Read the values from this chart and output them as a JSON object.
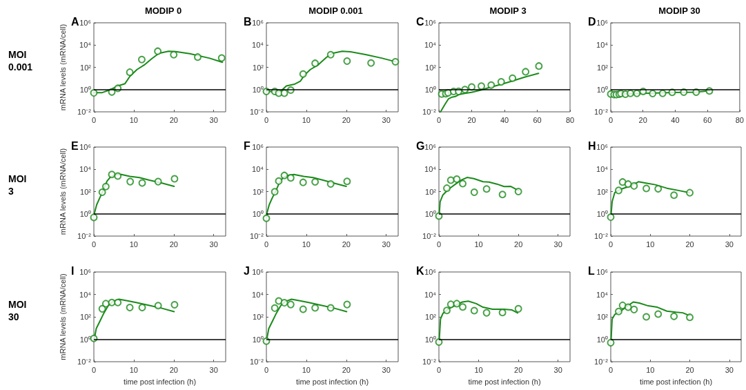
{
  "chart_data": [
    {
      "type": "scatter",
      "title": "MODIP 0",
      "ylabel": "mRNA levels (mRNA/cell)",
      "annotations": [
        "A",
        "MOI 0.001"
      ],
      "log": "y",
      "xlim": [
        0,
        33
      ],
      "xticks": [
        0,
        10,
        20,
        30
      ],
      "ylim": [
        0.01,
        1000000
      ],
      "yticks": [
        {
          "value": 0.01,
          "label": "10⁻²"
        },
        {
          "value": 1,
          "label": "10⁰"
        },
        {
          "value": 100,
          "label": "10²"
        },
        {
          "value": 10000,
          "label": "10⁴"
        },
        {
          "value": 1000000,
          "label": "10⁶"
        }
      ],
      "ref_lines": [
        {
          "axis": "y",
          "value": 1,
          "color": "#000000"
        }
      ],
      "series": [
        {
          "type": "scatter",
          "marker": "circle",
          "color": "#1a8a1a",
          "x": [
            0,
            4.5,
            6,
            9,
            12,
            16,
            20,
            26,
            32
          ],
          "values": [
            0.5,
            0.6,
            1.3,
            36,
            500,
            2800,
            1350,
            830,
            690
          ]
        },
        {
          "type": "line",
          "marker": "none",
          "line_style": "solid",
          "color": "#1a8a1a",
          "x": [
            0,
            2,
            4.2,
            6,
            7.8,
            9,
            10.8,
            12.6,
            14.5,
            16.3,
            18.7,
            20.5,
            24,
            29,
            32.2
          ],
          "values": [
            0.52,
            0.52,
            1,
            2.1,
            3.4,
            15,
            63,
            160,
            590,
            1800,
            2800,
            2600,
            1700,
            650,
            280
          ]
        }
      ]
    },
    {
      "type": "scatter",
      "title": "MODIP 0.001",
      "annotations": [
        "B"
      ],
      "log": "y",
      "xlim": [
        0,
        33
      ],
      "xticks": [
        0,
        10,
        20,
        30
      ],
      "ylim": [
        0.01,
        1000000
      ],
      "yticks": [
        {
          "value": 0.01,
          "label": "10⁻²"
        },
        {
          "value": 1,
          "label": "10⁰"
        },
        {
          "value": 100,
          "label": "10²"
        },
        {
          "value": 10000,
          "label": "10⁴"
        },
        {
          "value": 1000000,
          "label": "10⁶"
        }
      ],
      "ref_lines": [
        {
          "axis": "y",
          "value": 1,
          "color": "#000000"
        }
      ],
      "series": [
        {
          "type": "scatter",
          "marker": "circle",
          "color": "#1a8a1a",
          "x": [
            0,
            2.1,
            3.1,
            4.5,
            6.1,
            9.2,
            12.2,
            16.1,
            20.2,
            26.2,
            32.3
          ],
          "values": [
            0.68,
            0.68,
            0.48,
            0.48,
            0.9,
            25,
            230,
            1350,
            360,
            245,
            315
          ]
        },
        {
          "type": "line",
          "marker": "none",
          "line_style": "solid",
          "color": "#1a8a1a",
          "x": [
            0,
            3.5,
            5,
            7,
            8.5,
            9.5,
            11,
            13,
            15,
            16.5,
            19,
            21,
            25,
            29,
            32.3
          ],
          "values": [
            0.68,
            0.65,
            2.1,
            3,
            5.6,
            19,
            63,
            170,
            760,
            1800,
            2800,
            2500,
            1350,
            650,
            320
          ]
        }
      ]
    },
    {
      "type": "scatter",
      "title": "MODIP 3",
      "annotations": [
        "C"
      ],
      "log": "y",
      "xlim": [
        0,
        80
      ],
      "xticks": [
        0,
        20,
        40,
        60,
        80
      ],
      "ylim": [
        0.01,
        1000000
      ],
      "yticks": [
        {
          "value": 0.01,
          "label": "10⁻²"
        },
        {
          "value": 1,
          "label": "10⁰"
        },
        {
          "value": 100,
          "label": "10²"
        },
        {
          "value": 10000,
          "label": "10⁴"
        },
        {
          "value": 1000000,
          "label": "10⁶"
        }
      ],
      "ref_lines": [
        {
          "axis": "y",
          "value": 1,
          "color": "#000000"
        }
      ],
      "series": [
        {
          "type": "scatter",
          "marker": "circle",
          "color": "#1a8a1a",
          "x": [
            1.7,
            4.2,
            5.6,
            9,
            12,
            15.9,
            20,
            25.9,
            31.9,
            38,
            44.9,
            52.9,
            61
          ],
          "values": [
            0.4,
            0.42,
            0.51,
            0.68,
            0.69,
            1,
            1.7,
            2.05,
            2.5,
            4.9,
            10.5,
            40,
            130
          ]
        },
        {
          "type": "line",
          "marker": "none",
          "line_style": "solid",
          "color": "#1a8a1a",
          "x": [
            1,
            3.8,
            5.9,
            8,
            10,
            12.2,
            15.8,
            20,
            25.6,
            31.2,
            38.3,
            45.3,
            52.3,
            60.8
          ],
          "values": [
            0.01,
            0.05,
            0.15,
            0.21,
            0.24,
            0.35,
            0.45,
            0.56,
            0.9,
            1.6,
            3,
            6.2,
            13,
            29
          ]
        }
      ]
    },
    {
      "type": "scatter",
      "title": "MODIP 30",
      "annotations": [
        "D"
      ],
      "log": "y",
      "xlim": [
        0,
        80
      ],
      "xticks": [
        0,
        20,
        40,
        60,
        80
      ],
      "ylim": [
        0.01,
        1000000
      ],
      "yticks": [
        {
          "value": 0.01,
          "label": "10⁻²"
        },
        {
          "value": 1,
          "label": "10⁰"
        },
        {
          "value": 100,
          "label": "10²"
        },
        {
          "value": 10000,
          "label": "10⁴"
        },
        {
          "value": 1000000,
          "label": "10⁶"
        }
      ],
      "ref_lines": [
        {
          "axis": "y",
          "value": 1,
          "color": "#000000"
        }
      ],
      "series": [
        {
          "type": "scatter",
          "marker": "circle",
          "color": "#1a8a1a",
          "x": [
            0,
            2.1,
            3.5,
            5.2,
            6.3,
            9.1,
            12.2,
            16.2,
            20.1,
            26,
            32.2,
            38.1,
            45.3,
            53,
            61.2
          ],
          "values": [
            0.4,
            0.35,
            0.35,
            0.38,
            0.44,
            0.38,
            0.46,
            0.46,
            0.68,
            0.44,
            0.46,
            0.56,
            0.59,
            0.59,
            0.75
          ]
        },
        {
          "type": "line",
          "marker": "none",
          "line_style": "solid",
          "color": "#1a8a1a",
          "x": [
            0,
            17.6,
            38.7,
            52.7,
            61.2
          ],
          "values": [
            0.38,
            0.44,
            0.54,
            0.59,
            0.79
          ]
        }
      ]
    },
    {
      "type": "scatter",
      "ylabel": "mRNA levels (mRNA/cell)",
      "annotations": [
        "E",
        "MOI 3"
      ],
      "log": "y",
      "xlim": [
        0,
        33
      ],
      "xticks": [
        0,
        10,
        20,
        30
      ],
      "ylim": [
        0.01,
        1000000
      ],
      "yticks": [
        {
          "value": 0.01,
          "label": "10⁻²"
        },
        {
          "value": 1,
          "label": "10⁰"
        },
        {
          "value": 100,
          "label": "10²"
        },
        {
          "value": 10000,
          "label": "10⁴"
        },
        {
          "value": 1000000,
          "label": "10⁶"
        }
      ],
      "ref_lines": [
        {
          "axis": "y",
          "value": 1,
          "color": "#000000"
        }
      ],
      "series": [
        {
          "type": "scatter",
          "marker": "circle",
          "color": "#1a8a1a",
          "x": [
            0,
            2.1,
            3,
            4.5,
            6,
            9.1,
            12.1,
            16.1,
            20.2
          ],
          "values": [
            0.48,
            87,
            280,
            3400,
            2500,
            780,
            590,
            780,
            1400
          ]
        },
        {
          "type": "line",
          "marker": "none",
          "line_style": "solid",
          "color": "#1a8a1a",
          "x": [
            0.1,
            0.7,
            1.5,
            2.3,
            3.3,
            4.2,
            5.4,
            6.9,
            9,
            11.4,
            13.9,
            16.9,
            20.1
          ],
          "values": [
            1,
            6.4,
            28,
            120,
            870,
            2100,
            3200,
            3400,
            2300,
            1800,
            1050,
            590,
            290
          ]
        }
      ]
    },
    {
      "type": "scatter",
      "annotations": [
        "F"
      ],
      "log": "y",
      "xlim": [
        0,
        33
      ],
      "xticks": [
        0,
        10,
        20,
        30
      ],
      "ylim": [
        0.01,
        1000000
      ],
      "yticks": [
        {
          "value": 0.01,
          "label": "10⁻²"
        },
        {
          "value": 1,
          "label": "10⁰"
        },
        {
          "value": 100,
          "label": "10²"
        },
        {
          "value": 10000,
          "label": "10⁴"
        },
        {
          "value": 1000000,
          "label": "10⁶"
        }
      ],
      "ref_lines": [
        {
          "axis": "y",
          "value": 1,
          "color": "#000000"
        }
      ],
      "series": [
        {
          "type": "scatter",
          "marker": "circle",
          "color": "#1a8a1a",
          "x": [
            0,
            2.1,
            3.1,
            4.5,
            6.1,
            9.2,
            12.2,
            16.1,
            20.2
          ],
          "values": [
            0.4,
            95,
            870,
            2800,
            1700,
            670,
            740,
            480,
            820
          ]
        },
        {
          "type": "line",
          "marker": "none",
          "line_style": "solid",
          "color": "#1a8a1a",
          "x": [
            0.1,
            0.7,
            1.5,
            2.4,
            3.3,
            4.2,
            5.4,
            6.9,
            9.3,
            11.7,
            14.2,
            17.2,
            20
          ],
          "values": [
            1,
            6.4,
            28,
            120,
            680,
            1800,
            2900,
            3400,
            2300,
            1800,
            1050,
            530,
            290
          ]
        }
      ]
    },
    {
      "type": "scatter",
      "annotations": [
        "G"
      ],
      "log": "y",
      "xlim": [
        0,
        33
      ],
      "xticks": [
        0,
        10,
        20,
        30
      ],
      "ylim": [
        0.01,
        1000000
      ],
      "yticks": [
        {
          "value": 0.01,
          "label": "10⁻²"
        },
        {
          "value": 1,
          "label": "10⁰"
        },
        {
          "value": 100,
          "label": "10²"
        },
        {
          "value": 10000,
          "label": "10⁴"
        },
        {
          "value": 1000000,
          "label": "10⁶"
        }
      ],
      "ref_lines": [
        {
          "axis": "y",
          "value": 1,
          "color": "#000000"
        }
      ],
      "series": [
        {
          "type": "scatter",
          "marker": "circle",
          "color": "#1a8a1a",
          "x": [
            0,
            2,
            3,
            4.5,
            6,
            8.9,
            12,
            16,
            20
          ],
          "values": [
            0.63,
            200,
            1050,
            1300,
            520,
            87,
            170,
            54,
            100
          ]
        },
        {
          "type": "line",
          "marker": "none",
          "line_style": "solid",
          "color": "#1a8a1a",
          "x": [
            0.1,
            0.3,
            1,
            2.4,
            4.2,
            5.6,
            7.1,
            8.8,
            11.1,
            12.6,
            14.6,
            16.4,
            18.1,
            20
          ],
          "values": [
            1,
            12,
            49,
            160,
            470,
            1050,
            1850,
            1450,
            760,
            720,
            470,
            280,
            290,
            126
          ]
        }
      ]
    },
    {
      "type": "scatter",
      "annotations": [
        "H"
      ],
      "log": "y",
      "xlim": [
        0,
        33
      ],
      "xticks": [
        0,
        10,
        20,
        30
      ],
      "ylim": [
        0.01,
        1000000
      ],
      "yticks": [
        {
          "value": 0.01,
          "label": "10⁻²"
        },
        {
          "value": 1,
          "label": "10⁰"
        },
        {
          "value": 100,
          "label": "10²"
        },
        {
          "value": 10000,
          "label": "10⁴"
        },
        {
          "value": 1000000,
          "label": "10⁶"
        }
      ],
      "ref_lines": [
        {
          "axis": "y",
          "value": 1,
          "color": "#000000"
        }
      ],
      "series": [
        {
          "type": "scatter",
          "marker": "circle",
          "color": "#1a8a1a",
          "x": [
            0,
            2,
            3,
            4.4,
            5.9,
            9,
            12,
            16,
            20
          ],
          "values": [
            0.5,
            126,
            720,
            470,
            320,
            190,
            175,
            47,
            79
          ]
        },
        {
          "type": "line",
          "marker": "none",
          "line_style": "solid",
          "color": "#1a8a1a",
          "x": [
            0.1,
            0.35,
            1,
            2.5,
            4.3,
            5.7,
            7,
            8.9,
            11.3,
            14.2,
            17.1,
            20
          ],
          "values": [
            1,
            12,
            79,
            160,
            260,
            410,
            760,
            570,
            410,
            200,
            126,
            79
          ]
        }
      ]
    },
    {
      "type": "scatter",
      "xlabel": "time post infection (h)",
      "ylabel": "mRNA levels (mRNA/cell)",
      "annotations": [
        "I",
        "MOI 30"
      ],
      "log": "y",
      "xlim": [
        0,
        33
      ],
      "xticks": [
        0,
        10,
        20,
        30
      ],
      "ylim": [
        0.01,
        1000000
      ],
      "yticks": [
        {
          "value": 0.01,
          "label": "10⁻²"
        },
        {
          "value": 1,
          "label": "10⁰"
        },
        {
          "value": 100,
          "label": "10²"
        },
        {
          "value": 10000,
          "label": "10⁴"
        },
        {
          "value": 1000000,
          "label": "10⁶"
        }
      ],
      "ref_lines": [
        {
          "axis": "y",
          "value": 1,
          "color": "#000000"
        }
      ],
      "series": [
        {
          "type": "scatter",
          "marker": "circle",
          "color": "#1a8a1a",
          "x": [
            0,
            2.1,
            3,
            4.5,
            6,
            9,
            12.1,
            16.1,
            20.2
          ],
          "values": [
            1.2,
            520,
            1500,
            1900,
            1900,
            670,
            670,
            1000,
            1200
          ]
        },
        {
          "type": "line",
          "marker": "none",
          "line_style": "solid",
          "color": "#1a8a1a",
          "x": [
            0.1,
            0.6,
            1.5,
            2.4,
            3.6,
            4.8,
            6.3,
            8.4,
            10.8,
            13.9,
            16.9,
            20.1
          ],
          "values": [
            1,
            9,
            40,
            180,
            1000,
            2400,
            3700,
            2700,
            1800,
            1050,
            600,
            290
          ]
        }
      ]
    },
    {
      "type": "scatter",
      "xlabel": "time post infection (h)",
      "annotations": [
        "J"
      ],
      "log": "y",
      "xlim": [
        0,
        33
      ],
      "xticks": [
        0,
        10,
        20,
        30
      ],
      "ylim": [
        0.01,
        1000000
      ],
      "yticks": [
        {
          "value": 0.01,
          "label": "10⁻²"
        },
        {
          "value": 1,
          "label": "10⁰"
        },
        {
          "value": 100,
          "label": "10²"
        },
        {
          "value": 10000,
          "label": "10⁴"
        },
        {
          "value": 1000000,
          "label": "10⁶"
        }
      ],
      "ref_lines": [
        {
          "axis": "y",
          "value": 1,
          "color": "#000000"
        }
      ],
      "series": [
        {
          "type": "scatter",
          "marker": "circle",
          "color": "#1a8a1a",
          "x": [
            0,
            2.1,
            3.1,
            4.5,
            6.1,
            9.2,
            12.2,
            16.1,
            20.2
          ],
          "values": [
            0.68,
            600,
            2600,
            1800,
            1260,
            470,
            630,
            630,
            1260
          ]
        },
        {
          "type": "line",
          "marker": "none",
          "line_style": "solid",
          "color": "#1a8a1a",
          "x": [
            0.1,
            0.6,
            1.5,
            2.4,
            3.6,
            4.8,
            6.3,
            8.4,
            10.8,
            13.9,
            16.9,
            20.1
          ],
          "values": [
            1,
            9,
            40,
            180,
            1000,
            2400,
            3700,
            2700,
            1800,
            1050,
            600,
            290
          ]
        }
      ]
    },
    {
      "type": "scatter",
      "xlabel": "time post infection (h)",
      "annotations": [
        "K"
      ],
      "log": "y",
      "xlim": [
        0,
        33
      ],
      "xticks": [
        0,
        10,
        20,
        30
      ],
      "ylim": [
        0.01,
        1000000
      ],
      "yticks": [
        {
          "value": 0.01,
          "label": "10⁻²"
        },
        {
          "value": 1,
          "label": "10⁰"
        },
        {
          "value": 100,
          "label": "10²"
        },
        {
          "value": 10000,
          "label": "10⁴"
        },
        {
          "value": 1000000,
          "label": "10⁶"
        }
      ],
      "ref_lines": [
        {
          "axis": "y",
          "value": 1,
          "color": "#000000"
        }
      ],
      "series": [
        {
          "type": "scatter",
          "marker": "circle",
          "color": "#1a8a1a",
          "x": [
            0,
            2,
            3,
            4.5,
            6,
            8.9,
            12,
            16,
            20
          ],
          "values": [
            0.57,
            370,
            1300,
            1500,
            760,
            360,
            230,
            245,
            520
          ]
        },
        {
          "type": "line",
          "marker": "none",
          "line_style": "solid",
          "color": "#1a8a1a",
          "x": [
            0.1,
            0.4,
            1,
            2.4,
            4.2,
            5.9,
            7.4,
            9.4,
            11.1,
            13.5,
            16.4,
            18.4,
            19.8
          ],
          "values": [
            1,
            63,
            200,
            520,
            1050,
            2100,
            2500,
            1500,
            720,
            470,
            470,
            410,
            220
          ]
        }
      ]
    },
    {
      "type": "scatter",
      "xlabel": "time post infection (h)",
      "annotations": [
        "L"
      ],
      "log": "y",
      "xlim": [
        0,
        33
      ],
      "xticks": [
        0,
        10,
        20,
        30
      ],
      "ylim": [
        0.01,
        1000000
      ],
      "yticks": [
        {
          "value": 0.01,
          "label": "10⁻²"
        },
        {
          "value": 1,
          "label": "10⁰"
        },
        {
          "value": 100,
          "label": "10²"
        },
        {
          "value": 10000,
          "label": "10⁴"
        },
        {
          "value": 1000000,
          "label": "10⁶"
        }
      ],
      "ref_lines": [
        {
          "axis": "y",
          "value": 1,
          "color": "#000000"
        }
      ],
      "series": [
        {
          "type": "scatter",
          "marker": "circle",
          "color": "#1a8a1a",
          "x": [
            0,
            2,
            3,
            4.4,
            5.9,
            9,
            12,
            16,
            20
          ],
          "values": [
            0.5,
            300,
            1050,
            720,
            450,
            100,
            175,
            110,
            91
          ]
        },
        {
          "type": "line",
          "marker": "none",
          "line_style": "solid",
          "color": "#1a8a1a",
          "x": [
            0.1,
            0.35,
            1,
            2.5,
            4.3,
            5.7,
            7.2,
            9.5,
            11.8,
            14.2,
            16.5,
            18.2,
            20
          ],
          "values": [
            1,
            63,
            160,
            320,
            950,
            2100,
            1700,
            950,
            720,
            320,
            260,
            230,
            126
          ]
        }
      ]
    }
  ]
}
